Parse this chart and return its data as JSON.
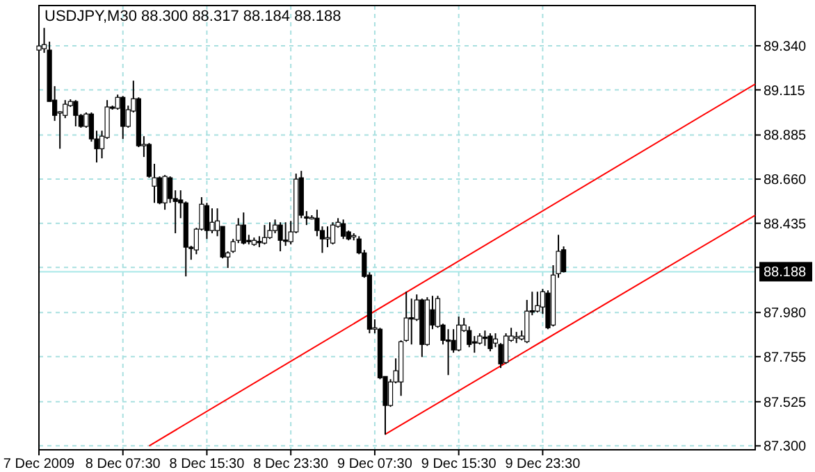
{
  "chart_data": {
    "type": "candlestick",
    "title": "USDJPY,M30  88.300 88.317 88.184 88.188",
    "x": [
      "2009-12-07T23:30",
      "2009-12-08T00:00",
      "2009-12-08T00:30",
      "2009-12-08T01:00",
      "2009-12-08T01:30",
      "2009-12-08T02:00",
      "2009-12-08T02:30",
      "2009-12-08T03:00",
      "2009-12-08T03:30",
      "2009-12-08T04:00",
      "2009-12-08T04:30",
      "2009-12-08T05:00",
      "2009-12-08T05:30",
      "2009-12-08T06:00",
      "2009-12-08T06:30",
      "2009-12-08T07:00",
      "2009-12-08T07:30",
      "2009-12-08T08:00",
      "2009-12-08T08:30",
      "2009-12-08T09:00",
      "2009-12-08T09:30",
      "2009-12-08T10:00",
      "2009-12-08T10:30",
      "2009-12-08T11:00",
      "2009-12-08T11:30",
      "2009-12-08T12:00",
      "2009-12-08T12:30",
      "2009-12-08T13:00",
      "2009-12-08T13:30",
      "2009-12-08T14:00",
      "2009-12-08T14:30",
      "2009-12-08T15:00",
      "2009-12-08T15:30",
      "2009-12-08T16:00",
      "2009-12-08T16:30",
      "2009-12-08T17:00",
      "2009-12-08T17:30",
      "2009-12-08T18:00",
      "2009-12-08T18:30",
      "2009-12-08T19:00",
      "2009-12-08T19:30",
      "2009-12-08T20:00",
      "2009-12-08T20:30",
      "2009-12-08T21:00",
      "2009-12-08T21:30",
      "2009-12-08T22:00",
      "2009-12-08T22:30",
      "2009-12-08T23:00",
      "2009-12-08T23:30",
      "2009-12-09T00:00",
      "2009-12-09T00:30",
      "2009-12-09T01:00",
      "2009-12-09T01:30",
      "2009-12-09T02:00",
      "2009-12-09T02:30",
      "2009-12-09T03:00",
      "2009-12-09T03:30",
      "2009-12-09T04:00",
      "2009-12-09T04:30",
      "2009-12-09T05:00",
      "2009-12-09T05:30",
      "2009-12-09T06:00",
      "2009-12-09T06:30",
      "2009-12-09T07:00",
      "2009-12-09T07:30",
      "2009-12-09T08:00",
      "2009-12-09T08:30",
      "2009-12-09T09:00",
      "2009-12-09T09:30",
      "2009-12-09T10:00",
      "2009-12-09T10:30",
      "2009-12-09T11:00",
      "2009-12-09T11:30",
      "2009-12-09T12:00",
      "2009-12-09T12:30",
      "2009-12-09T13:00",
      "2009-12-09T13:30",
      "2009-12-09T14:00",
      "2009-12-09T14:30",
      "2009-12-09T15:00",
      "2009-12-09T15:30",
      "2009-12-09T16:00",
      "2009-12-09T16:30",
      "2009-12-09T17:00",
      "2009-12-09T17:30",
      "2009-12-09T18:00",
      "2009-12-09T18:30",
      "2009-12-09T19:00",
      "2009-12-09T19:30",
      "2009-12-09T20:00",
      "2009-12-09T20:30",
      "2009-12-09T21:00",
      "2009-12-09T21:30",
      "2009-12-09T22:00",
      "2009-12-09T22:30",
      "2009-12-09T23:00",
      "2009-12-09T23:30",
      "2009-12-10T00:00",
      "2009-12-10T00:30",
      "2009-12-10T01:00",
      "2009-12-10T01:30"
    ],
    "ohlc": [
      [
        89.318,
        89.346,
        89.205,
        89.339
      ],
      [
        89.325,
        89.431,
        89.304,
        89.346
      ],
      [
        89.318,
        89.361,
        89.056,
        89.056
      ],
      [
        89.063,
        89.134,
        88.957,
        88.985
      ],
      [
        89.0,
        89.007,
        88.815,
        89.0
      ],
      [
        88.985,
        89.063,
        88.971,
        89.042
      ],
      [
        89.035,
        89.067,
        89.028,
        89.056
      ],
      [
        89.056,
        89.063,
        88.929,
        88.985
      ],
      [
        88.985,
        88.992,
        88.922,
        88.929
      ],
      [
        88.929,
        89.0,
        88.922,
        88.992
      ],
      [
        88.992,
        89.0,
        88.851,
        88.865
      ],
      [
        88.865,
        88.907,
        88.745,
        88.815
      ],
      [
        88.815,
        88.907,
        88.766,
        88.879
      ],
      [
        88.872,
        89.063,
        88.865,
        89.028
      ],
      [
        89.028,
        89.035,
        89.014,
        89.021
      ],
      [
        89.021,
        89.091,
        89.014,
        89.077
      ],
      [
        89.077,
        89.084,
        88.865,
        88.929
      ],
      [
        88.929,
        89.035,
        88.922,
        89.014
      ],
      [
        89.007,
        89.162,
        89.0,
        89.07
      ],
      [
        89.07,
        89.077,
        88.823,
        88.83
      ],
      [
        88.83,
        88.879,
        88.773,
        88.837
      ],
      [
        88.837,
        88.844,
        88.667,
        88.674
      ],
      [
        88.624,
        88.738,
        88.539,
        88.667
      ],
      [
        88.667,
        88.674,
        88.532,
        88.539
      ],
      [
        88.539,
        88.681,
        88.504,
        88.674
      ],
      [
        88.667,
        88.674,
        88.539,
        88.561
      ],
      [
        88.561,
        88.603,
        88.384,
        88.546
      ],
      [
        88.554,
        88.603,
        88.461,
        88.539
      ],
      [
        88.539,
        88.546,
        88.164,
        88.313
      ],
      [
        88.313,
        88.32,
        88.249,
        88.306
      ],
      [
        88.299,
        88.412,
        88.277,
        88.405
      ],
      [
        88.405,
        88.568,
        88.398,
        88.532
      ],
      [
        88.525,
        88.539,
        88.355,
        88.398
      ],
      [
        88.398,
        88.511,
        88.384,
        88.44
      ],
      [
        88.398,
        88.511,
        88.369,
        88.447
      ],
      [
        88.419,
        88.419,
        88.256,
        88.263
      ],
      [
        88.263,
        88.292,
        88.207,
        88.284
      ],
      [
        88.292,
        88.355,
        88.284,
        88.341
      ],
      [
        88.348,
        88.461,
        88.334,
        88.426
      ],
      [
        88.426,
        88.49,
        88.327,
        88.334
      ],
      [
        88.348,
        88.376,
        88.327,
        88.341
      ],
      [
        88.327,
        88.362,
        88.32,
        88.348
      ],
      [
        88.341,
        88.369,
        88.313,
        88.337
      ],
      [
        88.334,
        88.426,
        88.327,
        88.362
      ],
      [
        88.362,
        88.44,
        88.355,
        88.398
      ],
      [
        88.398,
        88.454,
        88.384,
        88.426
      ],
      [
        88.426,
        88.44,
        88.292,
        88.348
      ],
      [
        88.348,
        88.44,
        88.32,
        88.344
      ],
      [
        88.341,
        88.447,
        88.327,
        88.391
      ],
      [
        88.391,
        88.688,
        88.384,
        88.66
      ],
      [
        88.667,
        88.702,
        88.461,
        88.476
      ],
      [
        88.468,
        88.497,
        88.426,
        88.461
      ],
      [
        88.461,
        88.476,
        88.454,
        88.461
      ],
      [
        88.461,
        88.504,
        88.369,
        88.398
      ],
      [
        88.398,
        88.419,
        88.284,
        88.355
      ],
      [
        88.355,
        88.419,
        88.313,
        88.362
      ],
      [
        88.334,
        88.44,
        88.327,
        88.426
      ],
      [
        88.419,
        88.461,
        88.412,
        88.44
      ],
      [
        88.433,
        88.454,
        88.355,
        88.369
      ],
      [
        88.391,
        88.398,
        88.348,
        88.355
      ],
      [
        88.369,
        88.384,
        88.348,
        88.369
      ],
      [
        88.355,
        88.369,
        88.277,
        88.284
      ],
      [
        88.284,
        88.299,
        88.157,
        88.164
      ],
      [
        88.171,
        88.185,
        87.874,
        87.895
      ],
      [
        87.895,
        87.945,
        87.874,
        87.902
      ],
      [
        87.895,
        87.902,
        87.64,
        87.647
      ],
      [
        87.654,
        87.654,
        87.357,
        87.506
      ],
      [
        87.506,
        87.64,
        87.499,
        87.626
      ],
      [
        87.626,
        87.746,
        87.619,
        87.683
      ],
      [
        87.626,
        87.838,
        87.555,
        87.831
      ],
      [
        87.838,
        88.086,
        87.831,
        87.952
      ],
      [
        87.952,
        88.051,
        87.817,
        87.948
      ],
      [
        87.945,
        88.072,
        87.937,
        88.044
      ],
      [
        88.044,
        88.051,
        87.753,
        87.817
      ],
      [
        87.817,
        88.058,
        87.81,
        88.044
      ],
      [
        87.994,
        88.065,
        87.895,
        87.916
      ],
      [
        87.909,
        88.065,
        87.902,
        88.051
      ],
      [
        87.916,
        87.923,
        87.817,
        87.838
      ],
      [
        87.838,
        87.895,
        87.661,
        87.835
      ],
      [
        87.838,
        87.895,
        87.775,
        87.789
      ],
      [
        87.789,
        87.959,
        87.782,
        87.916
      ],
      [
        87.888,
        87.952,
        87.881,
        87.916
      ],
      [
        87.888,
        87.909,
        87.803,
        87.817
      ],
      [
        87.831,
        87.86,
        87.775,
        87.824
      ],
      [
        87.824,
        87.874,
        87.817,
        87.86
      ],
      [
        87.853,
        87.888,
        87.81,
        87.849
      ],
      [
        87.86,
        87.874,
        87.782,
        87.796
      ],
      [
        87.824,
        87.874,
        87.803,
        87.845
      ],
      [
        87.817,
        87.824,
        87.697,
        87.718
      ],
      [
        87.725,
        87.874,
        87.718,
        87.86
      ],
      [
        87.838,
        87.902,
        87.831,
        87.86
      ],
      [
        87.853,
        87.881,
        87.824,
        87.853
      ],
      [
        87.845,
        87.888,
        87.838,
        87.86
      ],
      [
        87.831,
        88.044,
        87.824,
        87.987
      ],
      [
        87.987,
        88.086,
        87.966,
        87.984
      ],
      [
        87.987,
        88.086,
        87.98,
        88.015
      ],
      [
        88.008,
        88.1,
        87.973,
        88.086
      ],
      [
        88.079,
        88.093,
        87.895,
        87.902
      ],
      [
        87.916,
        88.221,
        87.909,
        88.171
      ],
      [
        88.178,
        88.376,
        88.157,
        88.292
      ],
      [
        88.3,
        88.317,
        88.184,
        88.188
      ]
    ],
    "series": [
      {
        "type": "line",
        "x": [
          "2009-12-08T10:00",
          "2009-12-10T19:45"
        ],
        "values": [
          87.3,
          89.145
        ],
        "color": "#ff0000"
      },
      {
        "type": "line",
        "x": [
          "2009-12-09T08:30",
          "2009-12-10T19:45"
        ],
        "values": [
          87.359,
          88.476
        ],
        "color": "#ff0000"
      }
    ],
    "xlim": [
      "2009-12-07T23:30",
      "2009-12-10T19:45"
    ],
    "xticks": [
      {
        "value": "2009-12-07T23:30",
        "label": "7 Dec 2009"
      },
      {
        "value": "2009-12-08T07:30",
        "label": "8 Dec 07:30"
      },
      {
        "value": "2009-12-08T15:30",
        "label": "8 Dec 15:30"
      },
      {
        "value": "2009-12-08T23:30",
        "label": "8 Dec 23:30"
      },
      {
        "value": "2009-12-09T07:30",
        "label": "9 Dec 07:30"
      },
      {
        "value": "2009-12-09T15:30",
        "label": "9 Dec 15:30"
      },
      {
        "value": "2009-12-09T23:30",
        "label": "9 Dec 23:30"
      }
    ],
    "ylim": [
      87.28,
      89.545
    ],
    "yticks": [
      {
        "value": 87.3,
        "label": "87.300"
      },
      {
        "value": 87.525,
        "label": "87.525"
      },
      {
        "value": 87.755,
        "label": "87.755"
      },
      {
        "value": 87.98,
        "label": "87.980"
      },
      {
        "value": 88.21,
        "label": null
      },
      {
        "value": 88.435,
        "label": "88.435"
      },
      {
        "value": 88.66,
        "label": "88.660"
      },
      {
        "value": 88.885,
        "label": "88.885"
      },
      {
        "value": 89.115,
        "label": "89.115"
      },
      {
        "value": 89.34,
        "label": "89.340"
      }
    ],
    "ref_lines": [
      {
        "axis": "y",
        "value": 88.188,
        "label": "88.188",
        "color": "#a8e8e8"
      }
    ],
    "grid": true
  }
}
